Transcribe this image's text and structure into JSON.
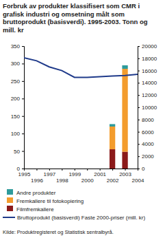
{
  "chart_data": {
    "type": "bar",
    "title": "Forbruk av produkter klassifisert som CMR i grafisk industri og omsetning målt som bruttoprodukt (basisverdi). 1995-2003. Tonn og mill. kr",
    "source": "Kilde:  Produktregisteret og Statistisk sentralbyrå.",
    "stacked": true,
    "grid": false,
    "x": [
      1995,
      1996,
      1997,
      1998,
      1999,
      2000,
      2001,
      2002,
      2003,
      2004
    ],
    "xlim": [
      1995,
      2004
    ],
    "xticks": [
      1995,
      1996,
      1997,
      1998,
      1999,
      2000,
      2001,
      2002,
      2003,
      2004
    ],
    "ylim": [
      0,
      350
    ],
    "yticks": [
      0,
      50,
      100,
      150,
      200,
      250,
      300,
      350
    ],
    "y2lim": [
      0,
      20000
    ],
    "y2ticks": [
      0,
      2000,
      4000,
      6000,
      8000,
      10000,
      12000,
      14000,
      16000,
      18000,
      20000
    ],
    "series": [
      {
        "name": "Andre produkter",
        "type": "bar",
        "color": "#2e9b9b",
        "values": [
          null,
          null,
          null,
          null,
          null,
          null,
          null,
          7,
          10,
          null
        ]
      },
      {
        "name": "Fremkallere til fotokopiering",
        "type": "bar",
        "color": "#f39c2d",
        "values": [
          null,
          null,
          null,
          null,
          null,
          null,
          null,
          65,
          237,
          null
        ]
      },
      {
        "name": "Filmfremkallere",
        "type": "bar",
        "color": "#8b1a1a",
        "values": [
          null,
          null,
          null,
          null,
          null,
          null,
          null,
          55,
          48,
          null
        ]
      },
      {
        "name": "Bruttoprodukt (basisverdi) Faste 2000-priser (mill. kr)",
        "type": "line",
        "axis": "y2",
        "color": "#1f3a8a",
        "values": [
          18100,
          17600,
          16600,
          16000,
          14900,
          14900,
          15000,
          15100,
          15200,
          15400
        ]
      }
    ]
  }
}
